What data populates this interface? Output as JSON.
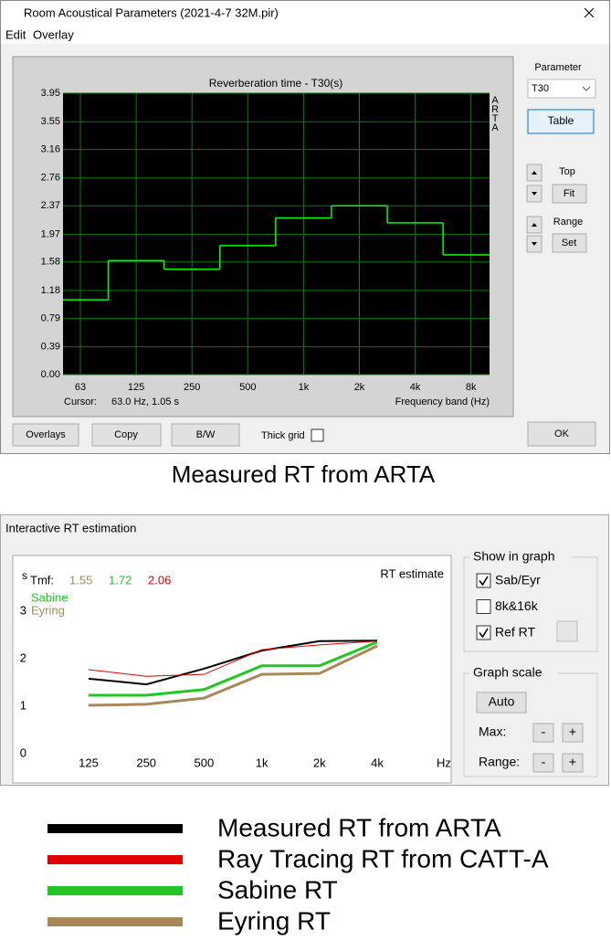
{
  "window1": {
    "title": "Room Acoustical Parameters (2021-4-7 32M.pir)",
    "menu": [
      "Edit",
      "Overlay"
    ],
    "side": {
      "parameter_label": "Parameter",
      "parameter": "T30",
      "table": "Table",
      "top": "Top",
      "fit": "Fit",
      "range": "Range",
      "set": "Set"
    },
    "buttons": [
      "Overlays",
      "Copy",
      "B/W"
    ],
    "thick_grid": {
      "label": "Thick grid",
      "checked": false
    },
    "ok": "OK"
  },
  "caption": "Measured RT from ARTA",
  "window2": {
    "title": "Interactive RT estimation",
    "show": {
      "title": "Show in graph",
      "options": [
        {
          "label": "Sab/Eyr",
          "checked": true
        },
        {
          "label": "8k&16k",
          "checked": false
        },
        {
          "label": "Ref RT",
          "checked": true
        }
      ]
    },
    "scale": {
      "title": "Graph scale",
      "auto": "Auto",
      "max": "Max:",
      "range": "Range:",
      "minus": "-",
      "plus": "+"
    }
  },
  "chart_data": [
    {
      "type": "step",
      "title": "Reverberation time - T30(s)",
      "watermark": "ARTA",
      "categories": [
        "63",
        "125",
        "250",
        "500",
        "1k",
        "2k",
        "4k",
        "8k"
      ],
      "values": [
        1.05,
        1.6,
        1.48,
        1.81,
        2.2,
        2.37,
        2.13,
        1.68
      ],
      "color": "#00ff00",
      "ylim": [
        0,
        3.95
      ],
      "yticks": [
        {
          "value": 0,
          "label": "0.00"
        },
        0.39,
        0.79,
        1.18,
        1.58,
        1.97,
        2.37,
        2.76,
        3.16,
        3.55,
        3.95
      ],
      "grid": true,
      "cursor_label": "Cursor:",
      "cursor": "63.0 Hz, 1.05 s",
      "x_label": "Frequency band (Hz)"
    },
    {
      "type": "line",
      "title": "RT estimate",
      "y_label": "s",
      "x_label": "Hz",
      "tmf_label": "Tmf:",
      "tmf_values": [
        1.55,
        1.72,
        2.06
      ],
      "tmf_colors": [
        "#a8885a",
        "#22c522",
        "#e00000"
      ],
      "inline_labels": [
        {
          "text": "Sabine",
          "color": "#22c522"
        },
        {
          "text": "Eyring",
          "color": "#a8885a"
        }
      ],
      "categories": [
        "125",
        "250",
        "500",
        "1k",
        "2k",
        "4k"
      ],
      "series": [
        {
          "name": "Measured RT from ARTA",
          "color": "#000000",
          "values": [
            1.58,
            1.46,
            1.79,
            2.17,
            2.37,
            2.38
          ]
        },
        {
          "name": "Ray Tracing RT from CATT-A",
          "color": "#e00000",
          "values": [
            1.77,
            1.63,
            1.67,
            2.19,
            2.29,
            2.37
          ]
        },
        {
          "name": "Sabine RT",
          "color": "#22c522",
          "values": [
            1.23,
            1.23,
            1.35,
            1.85,
            1.85,
            2.35
          ]
        },
        {
          "name": "Eyring RT",
          "color": "#a8885a",
          "values": [
            1.02,
            1.04,
            1.17,
            1.67,
            1.69,
            2.27
          ]
        }
      ],
      "ylim": [
        0,
        3.6
      ],
      "yticks": [
        0,
        1,
        2,
        3
      ]
    }
  ]
}
